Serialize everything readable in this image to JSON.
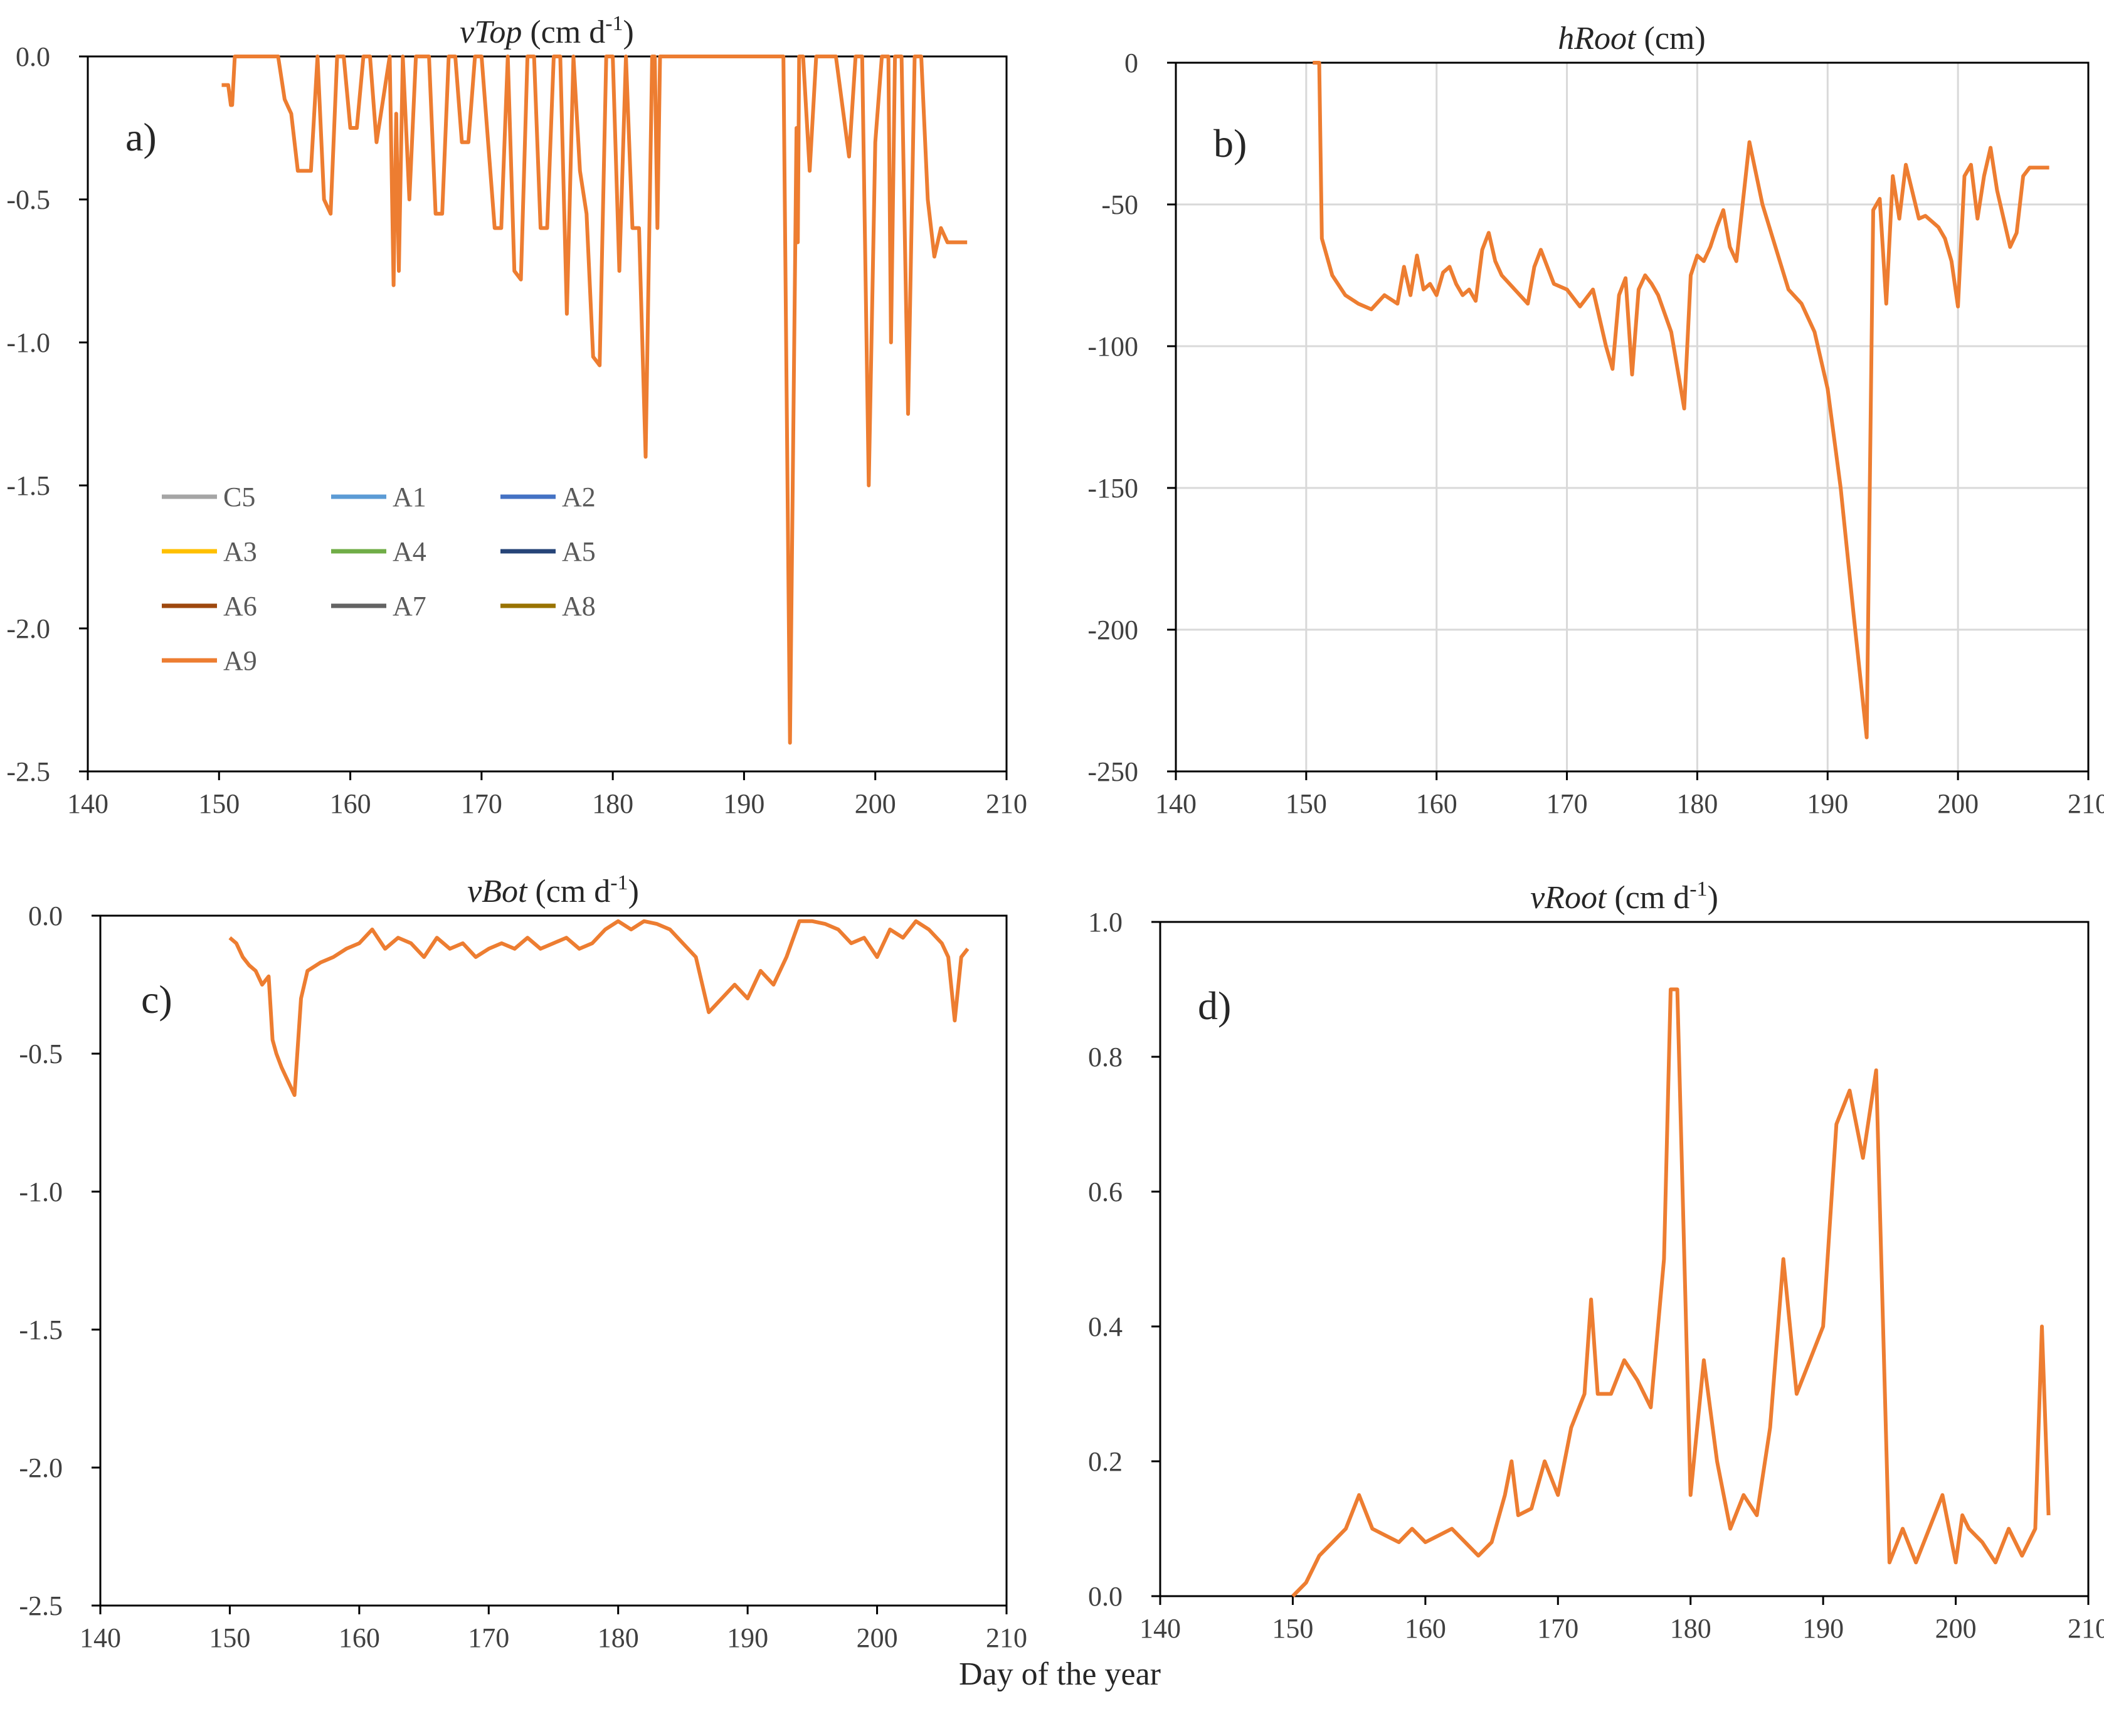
{
  "xlabel": "Day of the year",
  "legend": {
    "entries": [
      {
        "name": "C5",
        "color": "#a5a5a5"
      },
      {
        "name": "A1",
        "color": "#5b9bd5"
      },
      {
        "name": "A2",
        "color": "#4472c4"
      },
      {
        "name": "A3",
        "color": "#ffc000"
      },
      {
        "name": "A4",
        "color": "#70ad47"
      },
      {
        "name": "A5",
        "color": "#264478"
      },
      {
        "name": "A6",
        "color": "#9e480e"
      },
      {
        "name": "A7",
        "color": "#636363"
      },
      {
        "name": "A8",
        "color": "#997300"
      },
      {
        "name": "A9",
        "color": "#ed7d31"
      }
    ]
  },
  "chart_data": [
    {
      "type": "line",
      "panel": "a)",
      "title_var": "vTop",
      "title_unit": "(cm d",
      "title_sup": "-1",
      "title_close": ")",
      "xlim": [
        140,
        210
      ],
      "ylim": [
        -2.5,
        0
      ],
      "xticks": [
        140,
        150,
        160,
        170,
        180,
        190,
        200,
        210
      ],
      "yticks": [
        0,
        -0.5,
        -1,
        -1.5,
        -2,
        -2.5
      ],
      "ytick_labels": [
        "0.0",
        "-0.5",
        "-1.0",
        "-1.5",
        "-2.0",
        "-2.5"
      ],
      "grid": false,
      "legend_position": "lower-left inside",
      "series": [
        {
          "name": "A9",
          "x": [
            150.2,
            150.7,
            150.9,
            151.0,
            151.2,
            154.5,
            155.0,
            155.5,
            156.0,
            157.0,
            157.5,
            158.0,
            158.5,
            159.0,
            159.5,
            160.0,
            160.5,
            161.0,
            161.5,
            162.0,
            163.0,
            163.3,
            163.5,
            163.7,
            164.0,
            164.5,
            165.0,
            166.0,
            166.5,
            167.0,
            167.5,
            168.0,
            168.5,
            169.0,
            169.5,
            170.0,
            171.0,
            171.5,
            172.0,
            172.5,
            173.0,
            173.5,
            174.0,
            174.5,
            175.0,
            175.5,
            176.0,
            176.5,
            177.0,
            177.5,
            178.0,
            178.5,
            179.0,
            179.5,
            180.0,
            180.5,
            181.0,
            181.5,
            182.0,
            182.5,
            183.0,
            183.2,
            183.4,
            183.6,
            184.0,
            184.5,
            185.0,
            186.0,
            188.0,
            190.0,
            192.0,
            193.0,
            193.5,
            194.0,
            194.1,
            194.2,
            194.5,
            195.0,
            195.5,
            196.0,
            197.0,
            198.0,
            198.5,
            199.0,
            199.5,
            200.0,
            200.5,
            201.0,
            201.2,
            201.5,
            202.0,
            202.5,
            203.0,
            203.5,
            204.0,
            204.5,
            205.0,
            205.5,
            206.0,
            206.2,
            206.4,
            206.6,
            207.0
          ],
          "y": [
            -0.1,
            -0.1,
            -0.17,
            -0.17,
            0,
            0,
            -0.15,
            -0.2,
            -0.4,
            -0.4,
            0,
            -0.5,
            -0.55,
            0,
            0,
            -0.25,
            -0.25,
            0,
            0,
            -0.3,
            0,
            -0.8,
            -0.2,
            -0.75,
            0,
            -0.5,
            0,
            0,
            -0.55,
            -0.55,
            0,
            0,
            -0.3,
            -0.3,
            0,
            0,
            -0.6,
            -0.6,
            0,
            -0.75,
            -0.78,
            0,
            0,
            -0.6,
            -0.6,
            0,
            0,
            -0.9,
            0,
            -0.4,
            -0.55,
            -1.05,
            -1.08,
            0,
            0,
            -0.75,
            0,
            -0.6,
            -0.6,
            -1.4,
            0,
            0,
            -0.6,
            0,
            0,
            0,
            0,
            0,
            0,
            0,
            0,
            0,
            -2.4,
            -0.25,
            -0.65,
            0,
            0,
            -0.4,
            0,
            0,
            0,
            -0.35,
            0,
            0,
            -1.5,
            -0.3,
            0,
            0,
            -1.0,
            0,
            0,
            -1.25,
            0,
            0,
            -0.5,
            -0.7,
            -0.6,
            -0.65,
            -0.65,
            -0.65,
            -0.65,
            -0.65,
            -0.65
          ]
        }
      ]
    },
    {
      "type": "line",
      "panel": "b)",
      "title_var": "hRoot",
      "title_unit": "(cm)",
      "title_sup": "",
      "title_close": "",
      "xlim": [
        140,
        210
      ],
      "ylim": [
        -250,
        0
      ],
      "xticks": [
        140,
        150,
        160,
        170,
        180,
        190,
        200,
        210
      ],
      "yticks": [
        0,
        -50,
        -100,
        -150,
        -200,
        -250
      ],
      "ytick_labels": [
        "0",
        "-50",
        "-100",
        "-150",
        "-200",
        "-250"
      ],
      "grid": true,
      "series": [
        {
          "name": "A9",
          "x": [
            150.5,
            151.0,
            151.2,
            152.0,
            153.0,
            154.0,
            155.0,
            156.0,
            157.0,
            157.5,
            158.0,
            158.5,
            159.0,
            159.5,
            160.0,
            160.5,
            161.0,
            161.5,
            162.0,
            162.5,
            163.0,
            163.5,
            164.0,
            164.5,
            165.0,
            166.0,
            167.0,
            167.5,
            168.0,
            169.0,
            170.0,
            171.0,
            172.0,
            173.0,
            173.5,
            174.0,
            174.5,
            175.0,
            175.5,
            176.0,
            176.5,
            177.0,
            178.0,
            179.0,
            179.5,
            180.0,
            180.5,
            181.0,
            181.5,
            182.0,
            182.5,
            183.0,
            184.0,
            185.0,
            186.0,
            187.0,
            188.0,
            189.0,
            190.0,
            191.0,
            192.0,
            193.0,
            193.5,
            194.0,
            194.5,
            195.0,
            195.5,
            196.0,
            197.0,
            197.5,
            198.0,
            198.5,
            199.0,
            199.5,
            200.0,
            200.5,
            201.0,
            201.5,
            202.0,
            202.5,
            203.0,
            203.5,
            204.0,
            204.5,
            205.0,
            205.5,
            206.0,
            206.5,
            207.0
          ],
          "y": [
            0,
            0,
            -62,
            -75,
            -82,
            -85,
            -87,
            -82,
            -85,
            -72,
            -82,
            -68,
            -80,
            -78,
            -82,
            -74,
            -72,
            -78,
            -82,
            -80,
            -84,
            -66,
            -60,
            -70,
            -75,
            -80,
            -85,
            -72,
            -66,
            -78,
            -80,
            -86,
            -80,
            -100,
            -108,
            -82,
            -76,
            -110,
            -80,
            -75,
            -78,
            -82,
            -95,
            -122,
            -75,
            -68,
            -70,
            -65,
            -58,
            -52,
            -65,
            -70,
            -28,
            -50,
            -65,
            -80,
            -85,
            -95,
            -115,
            -150,
            -195,
            -238,
            -52,
            -48,
            -85,
            -40,
            -55,
            -36,
            -55,
            -54,
            -56,
            -58,
            -62,
            -70,
            -86,
            -40,
            -36,
            -55,
            -40,
            -30,
            -45,
            -55,
            -65,
            -60,
            -40,
            -37,
            -37,
            -37,
            -37
          ]
        }
      ]
    },
    {
      "type": "line",
      "panel": "c)",
      "title_var": "vBot",
      "title_unit": "(cm d",
      "title_sup": "-1",
      "title_close": ")",
      "xlim": [
        140,
        210
      ],
      "ylim": [
        -2.5,
        0
      ],
      "xticks": [
        140,
        150,
        160,
        170,
        180,
        190,
        200,
        210
      ],
      "yticks": [
        0,
        -0.5,
        -1,
        -1.5,
        -2,
        -2.5
      ],
      "ytick_labels": [
        "0.0",
        "-0.5",
        "-1.0",
        "-1.5",
        "-2.0",
        "-2.5"
      ],
      "grid": false,
      "series": [
        {
          "name": "A9",
          "x": [
            150.0,
            150.5,
            151.0,
            151.5,
            152.0,
            152.5,
            153.0,
            153.3,
            153.6,
            154.0,
            154.5,
            155.0,
            155.5,
            156.0,
            157.0,
            158.0,
            159.0,
            160.0,
            161.0,
            162.0,
            163.0,
            164.0,
            165.0,
            166.0,
            167.0,
            168.0,
            169.0,
            170.0,
            171.0,
            172.0,
            173.0,
            174.0,
            175.0,
            176.0,
            177.0,
            178.0,
            179.0,
            180.0,
            181.0,
            182.0,
            183.0,
            184.0,
            185.0,
            186.0,
            187.0,
            188.0,
            189.0,
            190.0,
            191.0,
            192.0,
            193.0,
            194.0,
            195.0,
            196.0,
            197.0,
            198.0,
            199.0,
            200.0,
            201.0,
            202.0,
            203.0,
            204.0,
            205.0,
            205.5,
            206.0,
            206.5,
            207.0
          ],
          "y": [
            -0.08,
            -0.1,
            -0.15,
            -0.18,
            -0.2,
            -0.25,
            -0.22,
            -0.45,
            -0.5,
            -0.55,
            -0.6,
            -0.65,
            -0.3,
            -0.2,
            -0.17,
            -0.15,
            -0.12,
            -0.1,
            -0.05,
            -0.12,
            -0.08,
            -0.1,
            -0.15,
            -0.08,
            -0.12,
            -0.1,
            -0.15,
            -0.12,
            -0.1,
            -0.12,
            -0.08,
            -0.12,
            -0.1,
            -0.08,
            -0.12,
            -0.1,
            -0.05,
            -0.02,
            -0.05,
            -0.02,
            -0.03,
            -0.05,
            -0.1,
            -0.15,
            -0.35,
            -0.3,
            -0.25,
            -0.3,
            -0.2,
            -0.25,
            -0.15,
            -0.02,
            -0.02,
            -0.03,
            -0.05,
            -0.1,
            -0.08,
            -0.15,
            -0.05,
            -0.08,
            -0.02,
            -0.05,
            -0.1,
            -0.15,
            -0.38,
            -0.15,
            -0.12
          ]
        }
      ]
    },
    {
      "type": "line",
      "panel": "d)",
      "title_var": "vRoot",
      "title_unit": "(cm d",
      "title_sup": "-1",
      "title_close": ")",
      "xlim": [
        140,
        210
      ],
      "ylim": [
        0,
        1
      ],
      "xticks": [
        140,
        150,
        160,
        170,
        180,
        190,
        200,
        210
      ],
      "yticks": [
        0,
        0.2,
        0.4,
        0.6,
        0.8,
        1
      ],
      "ytick_labels": [
        "0.0",
        "0.2",
        "0.4",
        "0.6",
        "0.8",
        "1.0"
      ],
      "grid": false,
      "series": [
        {
          "name": "A9",
          "x": [
            150.0,
            151.0,
            152.0,
            153.0,
            154.0,
            155.0,
            156.0,
            157.0,
            158.0,
            159.0,
            160.0,
            161.0,
            162.0,
            163.0,
            164.0,
            165.0,
            166.0,
            166.5,
            167.0,
            168.0,
            169.0,
            170.0,
            171.0,
            172.0,
            172.5,
            173.0,
            174.0,
            175.0,
            176.0,
            177.0,
            178.0,
            178.5,
            179.0,
            180.0,
            180.5,
            181.0,
            182.0,
            183.0,
            184.0,
            185.0,
            186.0,
            187.0,
            188.0,
            189.0,
            190.0,
            191.0,
            192.0,
            193.0,
            194.0,
            195.0,
            196.0,
            197.0,
            198.0,
            199.0,
            200.0,
            200.5,
            201.0,
            202.0,
            203.0,
            204.0,
            205.0,
            206.0,
            206.5,
            207.0
          ],
          "y": [
            0.0,
            0.02,
            0.06,
            0.08,
            0.1,
            0.15,
            0.1,
            0.09,
            0.08,
            0.1,
            0.08,
            0.09,
            0.1,
            0.08,
            0.06,
            0.08,
            0.15,
            0.2,
            0.12,
            0.13,
            0.2,
            0.15,
            0.25,
            0.3,
            0.44,
            0.3,
            0.3,
            0.35,
            0.32,
            0.28,
            0.5,
            0.9,
            0.9,
            0.15,
            0.25,
            0.35,
            0.2,
            0.1,
            0.15,
            0.12,
            0.25,
            0.5,
            0.3,
            0.35,
            0.4,
            0.7,
            0.75,
            0.65,
            0.78,
            0.05,
            0.1,
            0.05,
            0.1,
            0.15,
            0.05,
            0.12,
            0.1,
            0.08,
            0.05,
            0.1,
            0.06,
            0.1,
            0.4,
            0.12
          ]
        }
      ]
    }
  ]
}
